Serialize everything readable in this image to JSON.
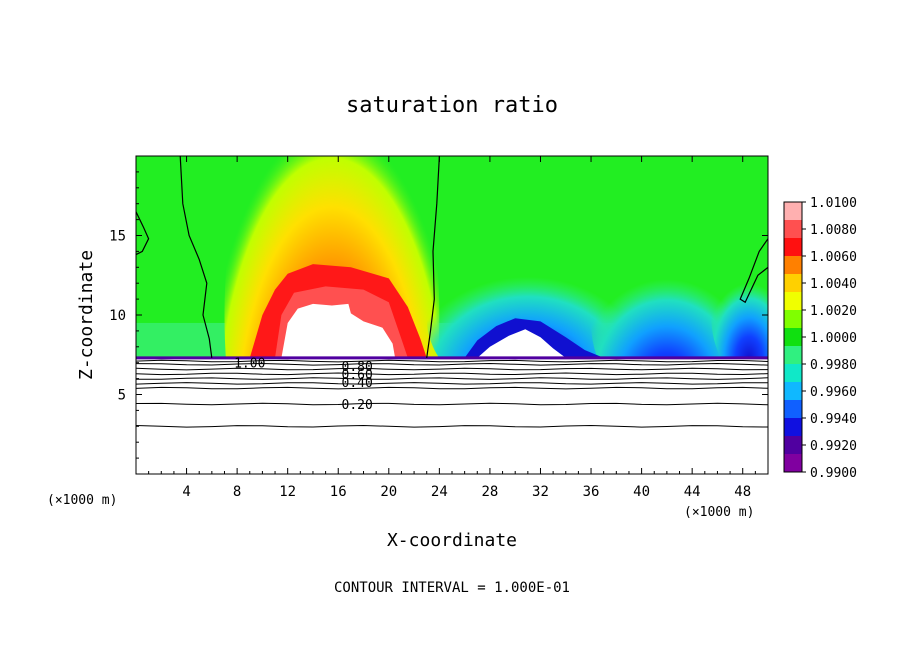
{
  "chart_data": {
    "type": "heatmap",
    "title": "saturation ratio",
    "xlabel": "X-coordinate",
    "ylabel": "Z-coordinate",
    "x_unit": "(×1000 m)",
    "x_unit_bottom": "(×1000 m)",
    "xlim": [
      0,
      50
    ],
    "ylim": [
      0,
      20
    ],
    "x_ticks": [
      "4",
      "8",
      "12",
      "16",
      "20",
      "24",
      "28",
      "32",
      "36",
      "40",
      "44",
      "48"
    ],
    "y_ticks": [
      "5",
      "10",
      "15"
    ],
    "colorbar": {
      "labels": [
        "1.0100",
        "1.0080",
        "1.0060",
        "1.0040",
        "1.0020",
        "1.0000",
        "0.9980",
        "0.9960",
        "0.9940",
        "0.9920",
        "0.9900"
      ],
      "colors": [
        "#ffb0b0",
        "#ff5050",
        "#ff1010",
        "#ff8000",
        "#ffd000",
        "#f0ff00",
        "#80ff00",
        "#10e010",
        "#30f080",
        "#10e8c8",
        "#10b8ff",
        "#1060ff",
        "#1010e0",
        "#5000a0",
        "#8000a0"
      ]
    },
    "contour_labels": [
      "1.00",
      "0.80",
      "0.60",
      "0.40",
      "0.20"
    ],
    "footer": "CONTOUR INTERVAL = 1.000E-01"
  }
}
